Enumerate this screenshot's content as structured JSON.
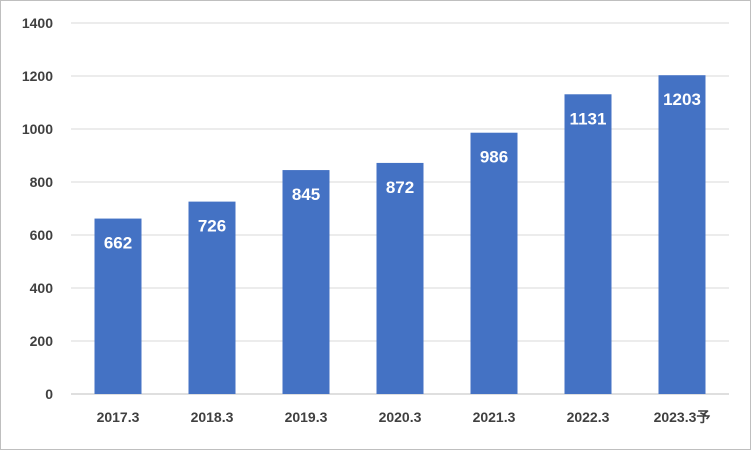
{
  "chart_data": {
    "type": "bar",
    "title": "",
    "xlabel": "",
    "ylabel": "",
    "categories": [
      "2017.3",
      "2018.3",
      "2019.3",
      "2020.3",
      "2021.3",
      "2022.3",
      "2023.3予"
    ],
    "values": [
      662,
      726,
      845,
      872,
      986,
      1131,
      1203
    ],
    "ylim": [
      0,
      1400
    ],
    "yticks": [
      "0",
      "200",
      "400",
      "600",
      "800",
      "1000",
      "1200",
      "1400"
    ],
    "grid": true,
    "legend": "none",
    "bar_color": "#4472c4",
    "grid_color": "#d9d9d9",
    "label_color": "#ffffff"
  }
}
